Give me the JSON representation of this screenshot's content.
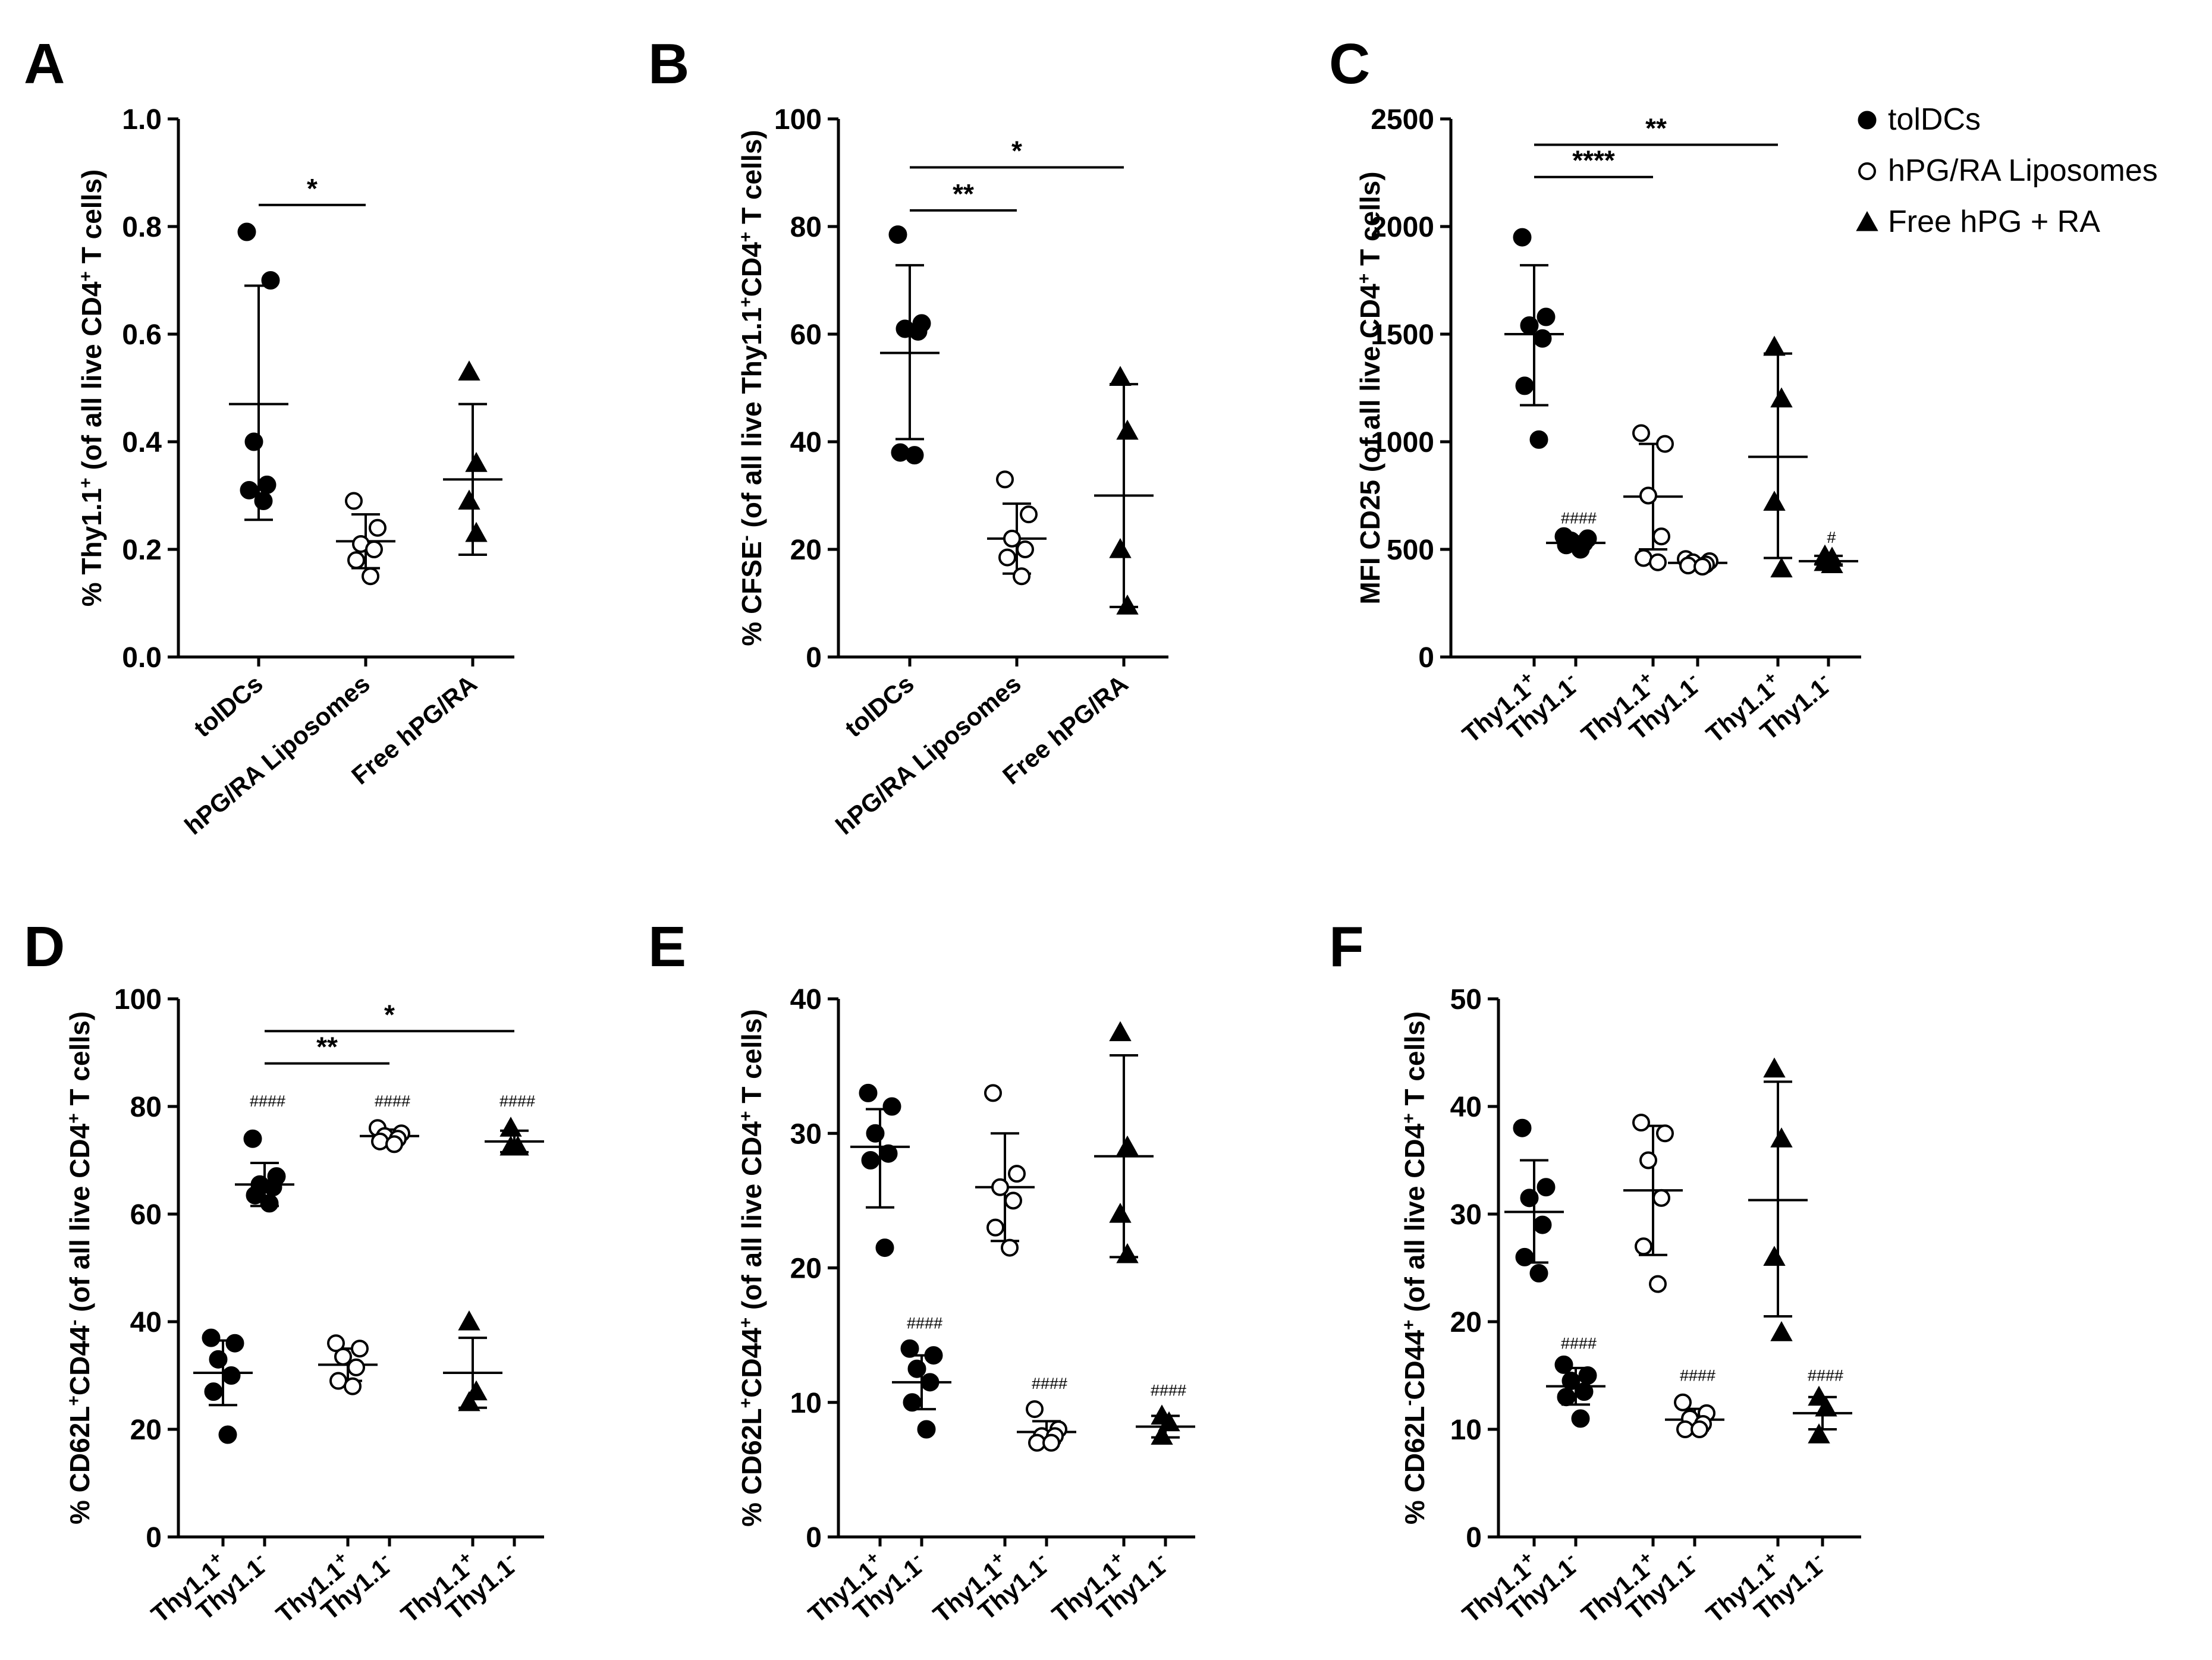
{
  "figure_type": "multi-panel dot plot",
  "legend": [
    {
      "label": "tolDCs",
      "marker": "filled-circle"
    },
    {
      "label": "hPG/RA Liposomes",
      "marker": "open-circle"
    },
    {
      "label": "Free hPG + RA",
      "marker": "filled-triangle"
    }
  ],
  "chart_data": [
    {
      "panel": "A",
      "type": "scatter",
      "ylabel": "% Thy1.1",
      "ylabel_sup": "+",
      "ylabel_rest": " (of all live CD4",
      "ylabel_sup2": "+",
      "ylabel_end": " T cells)",
      "ylim": [
        0,
        1.0
      ],
      "yticks": [
        "0.0",
        "0.2",
        "0.4",
        "0.6",
        "0.8",
        "1.0"
      ],
      "ytick_values": [
        0,
        0.2,
        0.4,
        0.6,
        0.8,
        1.0
      ],
      "categories": [
        "tolDCs",
        "hPG/RA Liposomes",
        "Free hPG/RA"
      ],
      "groups": [
        {
          "marker": "filled-circle",
          "points": [
            0.79,
            0.7,
            0.4,
            0.32,
            0.31,
            0.29
          ],
          "mean": 0.47,
          "sd_low": 0.255,
          "sd_high": 0.69
        },
        {
          "marker": "open-circle",
          "points": [
            0.29,
            0.24,
            0.21,
            0.2,
            0.18,
            0.15
          ],
          "mean": 0.215,
          "sd_low": 0.165,
          "sd_high": 0.265
        },
        {
          "marker": "filled-triangle",
          "points": [
            0.53,
            0.36,
            0.29,
            0.23
          ],
          "mean": 0.33,
          "sd_low": 0.19,
          "sd_high": 0.47
        }
      ],
      "significance": [
        {
          "from": 0,
          "to": 1,
          "y": 0.84,
          "label": "*"
        }
      ],
      "hash_marks": []
    },
    {
      "panel": "B",
      "type": "scatter",
      "ylabel": "% CFSE",
      "ylabel_sup": "-",
      "ylabel_rest": " (of all live Thy1.1",
      "ylabel_sup2": "+",
      "ylabel_mid": "CD4",
      "ylabel_sup3": "+",
      "ylabel_end": " T cells)",
      "ylim": [
        0,
        100
      ],
      "yticks": [
        "0",
        "20",
        "40",
        "60",
        "80",
        "100"
      ],
      "ytick_values": [
        0,
        20,
        40,
        60,
        80,
        100
      ],
      "categories": [
        "tolDCs",
        "hPG/RA Liposomes",
        "Free hPG/RA"
      ],
      "groups": [
        {
          "marker": "filled-circle",
          "points": [
            78.5,
            62,
            61,
            60.5,
            38,
            37.5
          ],
          "mean": 56.5,
          "sd_low": 40.5,
          "sd_high": 72.8
        },
        {
          "marker": "open-circle",
          "points": [
            33,
            26.5,
            22,
            20,
            18.5,
            15
          ],
          "mean": 22,
          "sd_low": 15.5,
          "sd_high": 28.5
        },
        {
          "marker": "filled-triangle",
          "points": [
            52,
            42,
            20,
            9.5
          ],
          "mean": 30,
          "sd_low": 9.3,
          "sd_high": 50.7
        }
      ],
      "significance": [
        {
          "from": 0,
          "to": 2,
          "y": 91,
          "label": "*"
        },
        {
          "from": 0,
          "to": 1,
          "y": 83,
          "label": "**"
        }
      ],
      "hash_marks": []
    },
    {
      "panel": "C",
      "type": "scatter",
      "ylabel": "MFI CD25 (of all live CD4",
      "ylabel_sup": "+",
      "ylabel_end": " T cells)",
      "ylim": [
        0,
        2500
      ],
      "yticks": [
        "0",
        "500",
        "1000",
        "1500",
        "2000",
        "2500"
      ],
      "ytick_values": [
        0,
        500,
        1000,
        1500,
        2000,
        2500
      ],
      "categories": [
        "Thy1.1",
        "Thy1.1",
        "Thy1.1",
        "Thy1.1",
        "Thy1.1",
        "Thy1.1"
      ],
      "category_sups": [
        "+",
        "-",
        "+",
        "-",
        "+",
        "-"
      ],
      "groups": [
        {
          "marker": "filled-circle",
          "points": [
            1950,
            1580,
            1540,
            1480,
            1260,
            1010
          ],
          "mean": 1500,
          "sd_low": 1170,
          "sd_high": 1820
        },
        {
          "marker": "filled-circle",
          "points": [
            560,
            550,
            540,
            530,
            520,
            500
          ],
          "mean": 530,
          "sd_low": 505,
          "sd_high": 560
        },
        {
          "marker": "open-circle",
          "points": [
            1040,
            990,
            750,
            560,
            460,
            440
          ],
          "mean": 745,
          "sd_low": 500,
          "sd_high": 990
        },
        {
          "marker": "open-circle",
          "points": [
            455,
            445,
            440,
            430,
            425,
            420
          ],
          "mean": 437,
          "sd_low": 420,
          "sd_high": 455
        },
        {
          "marker": "filled-triangle",
          "points": [
            1440,
            1200,
            720,
            410
          ],
          "mean": 930,
          "sd_low": 460,
          "sd_high": 1410
        },
        {
          "marker": "filled-triangle",
          "points": [
            470,
            460,
            440,
            430
          ],
          "mean": 445,
          "sd_low": 430,
          "sd_high": 470
        }
      ],
      "significance": [
        {
          "from": 0,
          "to": 2,
          "y": 2230,
          "label": "****"
        },
        {
          "from": 0,
          "to": 4,
          "y": 2380,
          "label": "**"
        }
      ],
      "hash_marks": [
        {
          "group": 1,
          "y": 620,
          "label": "####"
        },
        {
          "group": 5,
          "y": 530,
          "label": "#"
        }
      ]
    },
    {
      "panel": "D",
      "type": "scatter",
      "ylabel": "% CD62L",
      "ylabel_sup": "+",
      "ylabel_rest": "CD44",
      "ylabel_sup2": "-",
      "ylabel_mid": " (of all live CD4",
      "ylabel_sup3": "+",
      "ylabel_end": " T cells)",
      "ylim": [
        0,
        100
      ],
      "yticks": [
        "0",
        "20",
        "40",
        "60",
        "80",
        "100"
      ],
      "ytick_values": [
        0,
        20,
        40,
        60,
        80,
        100
      ],
      "categories": [
        "Thy1.1",
        "Thy1.1",
        "Thy1.1",
        "Thy1.1",
        "Thy1.1",
        "Thy1.1"
      ],
      "category_sups": [
        "+",
        "-",
        "+",
        "-",
        "+",
        "-"
      ],
      "groups": [
        {
          "marker": "filled-circle",
          "points": [
            37,
            36,
            33,
            30,
            27,
            19
          ],
          "mean": 30.5,
          "sd_low": 24.5,
          "sd_high": 36.5
        },
        {
          "marker": "filled-circle",
          "points": [
            74,
            67,
            65.5,
            65,
            63.5,
            62
          ],
          "mean": 65.5,
          "sd_low": 61.5,
          "sd_high": 69.5
        },
        {
          "marker": "open-circle",
          "points": [
            36,
            35,
            33.5,
            31.5,
            29,
            28
          ],
          "mean": 32,
          "sd_low": 29,
          "sd_high": 35
        },
        {
          "marker": "open-circle",
          "points": [
            76,
            75,
            74.5,
            74,
            73.5,
            73
          ],
          "mean": 74.5,
          "sd_low": 73.3,
          "sd_high": 75.7
        },
        {
          "marker": "filled-triangle",
          "points": [
            40,
            27,
            25
          ],
          "mean": 30.5,
          "sd_low": 24,
          "sd_high": 37
        },
        {
          "marker": "filled-triangle",
          "points": [
            76,
            72.5,
            72.5
          ],
          "mean": 73.5,
          "sd_low": 71.5,
          "sd_high": 75.5
        }
      ],
      "significance": [
        {
          "from": 1,
          "to": 3,
          "y": 88,
          "label": "**"
        },
        {
          "from": 1,
          "to": 5,
          "y": 94,
          "label": "*"
        }
      ],
      "hash_marks": [
        {
          "group": 1,
          "y": 80,
          "label": "####"
        },
        {
          "group": 3,
          "y": 80,
          "label": "####"
        },
        {
          "group": 5,
          "y": 80,
          "label": "####"
        }
      ]
    },
    {
      "panel": "E",
      "type": "scatter",
      "ylabel": "% CD62L",
      "ylabel_sup": "+",
      "ylabel_rest": "CD44",
      "ylabel_sup2": "+",
      "ylabel_mid": " (of all live CD4",
      "ylabel_sup3": "+",
      "ylabel_end": " T cells)",
      "ylim": [
        0,
        40
      ],
      "yticks": [
        "0",
        "10",
        "20",
        "30",
        "40"
      ],
      "ytick_values": [
        0,
        10,
        20,
        30,
        40
      ],
      "categories": [
        "Thy1.1",
        "Thy1.1",
        "Thy1.1",
        "Thy1.1",
        "Thy1.1",
        "Thy1.1"
      ],
      "category_sups": [
        "+",
        "-",
        "+",
        "-",
        "+",
        "-"
      ],
      "groups": [
        {
          "marker": "filled-circle",
          "points": [
            33,
            32,
            30,
            28.5,
            28,
            21.5
          ],
          "mean": 29,
          "sd_low": 24.5,
          "sd_high": 31.8
        },
        {
          "marker": "filled-circle",
          "points": [
            14,
            13.5,
            12.5,
            11.5,
            10,
            8
          ],
          "mean": 11.5,
          "sd_low": 9.5,
          "sd_high": 13.5
        },
        {
          "marker": "open-circle",
          "points": [
            33,
            27,
            26,
            25,
            23,
            21.5
          ],
          "mean": 26,
          "sd_low": 22,
          "sd_high": 30
        },
        {
          "marker": "open-circle",
          "points": [
            9.5,
            8,
            7.5,
            7.5,
            7,
            7
          ],
          "mean": 7.8,
          "sd_low": 7,
          "sd_high": 8.6
        },
        {
          "marker": "filled-triangle",
          "points": [
            37.5,
            29,
            24,
            21
          ],
          "mean": 28.3,
          "sd_low": 20.8,
          "sd_high": 35.8
        },
        {
          "marker": "filled-triangle",
          "points": [
            9,
            8.5,
            7.5
          ],
          "mean": 8.2,
          "sd_low": 7.4,
          "sd_high": 9.0
        }
      ],
      "significance": [],
      "hash_marks": [
        {
          "group": 1,
          "y": 15.5,
          "label": "####"
        },
        {
          "group": 3,
          "y": 11,
          "label": "####"
        },
        {
          "group": 5,
          "y": 10.5,
          "label": "####"
        }
      ]
    },
    {
      "panel": "F",
      "type": "scatter",
      "ylabel": "% CD62L",
      "ylabel_sup": "-",
      "ylabel_rest": "CD44",
      "ylabel_sup2": "+",
      "ylabel_mid": " (of all live CD4",
      "ylabel_sup3": "+",
      "ylabel_end": " T cells)",
      "ylim": [
        0,
        50
      ],
      "yticks": [
        "0",
        "10",
        "20",
        "30",
        "40",
        "50"
      ],
      "ytick_values": [
        0,
        10,
        20,
        30,
        40,
        50
      ],
      "categories": [
        "Thy1.1",
        "Thy1.1",
        "Thy1.1",
        "Thy1.1",
        "Thy1.1",
        "Thy1.1"
      ],
      "category_sups": [
        "+",
        "-",
        "+",
        "-",
        "+",
        "-"
      ],
      "groups": [
        {
          "marker": "filled-circle",
          "points": [
            38,
            32.5,
            31.5,
            29,
            26,
            24.5
          ],
          "mean": 30.2,
          "sd_low": 25.5,
          "sd_high": 35
        },
        {
          "marker": "filled-circle",
          "points": [
            16,
            15,
            14.5,
            13.5,
            13,
            11
          ],
          "mean": 14,
          "sd_low": 12.3,
          "sd_high": 15.7
        },
        {
          "marker": "open-circle",
          "points": [
            38.5,
            37.5,
            35,
            31.5,
            27,
            23.5
          ],
          "mean": 32.2,
          "sd_low": 26.2,
          "sd_high": 38.2
        },
        {
          "marker": "open-circle",
          "points": [
            12.5,
            11.5,
            11,
            10.5,
            10,
            10
          ],
          "mean": 10.9,
          "sd_low": 9.9,
          "sd_high": 11.9
        },
        {
          "marker": "filled-triangle",
          "points": [
            43.5,
            37,
            26,
            19
          ],
          "mean": 31.3,
          "sd_low": 20.5,
          "sd_high": 42.3
        },
        {
          "marker": "filled-triangle",
          "points": [
            13,
            12,
            9.5
          ],
          "mean": 11.5,
          "sd_low": 10,
          "sd_high": 13
        }
      ],
      "significance": [],
      "hash_marks": [
        {
          "group": 1,
          "y": 17.5,
          "label": "####"
        },
        {
          "group": 3,
          "y": 14.5,
          "label": "####"
        },
        {
          "group": 5,
          "y": 14.5,
          "label": "####"
        }
      ]
    }
  ]
}
